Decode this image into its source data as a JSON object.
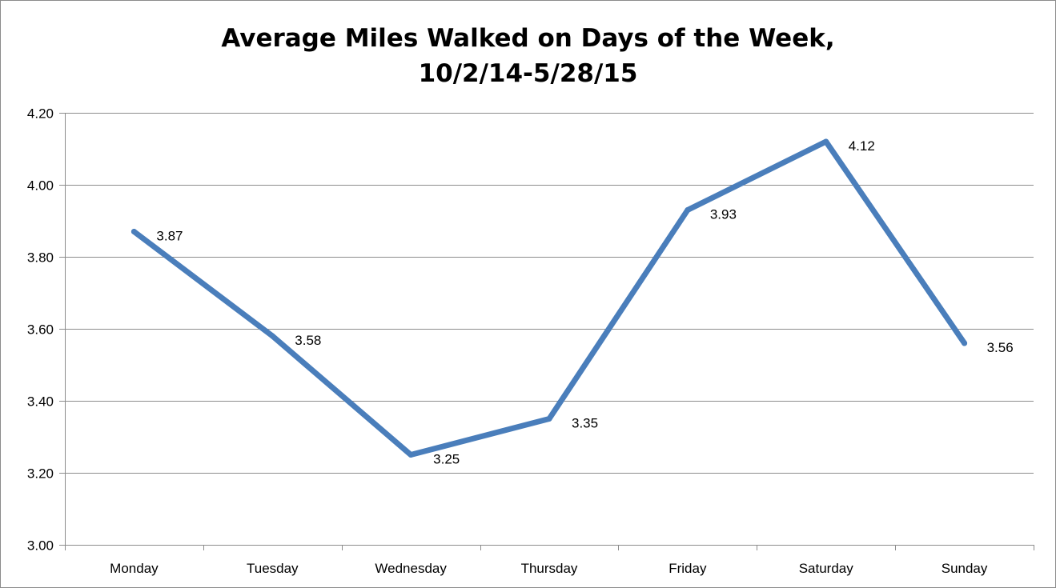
{
  "chart_data": {
    "type": "line",
    "title_lines": [
      "Average Miles Walked on Days of the Week,",
      "10/2/14-5/28/15"
    ],
    "categories": [
      "Monday",
      "Tuesday",
      "Wednesday",
      "Thursday",
      "Friday",
      "Saturday",
      "Sunday"
    ],
    "values": [
      3.87,
      3.58,
      3.25,
      3.35,
      3.93,
      4.12,
      3.56
    ],
    "data_labels": [
      "3.87",
      "3.58",
      "3.25",
      "3.35",
      "3.93",
      "4.12",
      "3.56"
    ],
    "yticks": [
      3.0,
      3.2,
      3.4,
      3.6,
      3.8,
      4.0,
      4.2
    ],
    "ytick_labels": [
      "3.00",
      "3.20",
      "3.40",
      "3.60",
      "3.80",
      "4.00",
      "4.20"
    ],
    "ylim": [
      3.0,
      4.2
    ],
    "grid": true,
    "legend": "none",
    "line_color": "#4a7ebb",
    "grid_color": "#8c8c8c"
  }
}
